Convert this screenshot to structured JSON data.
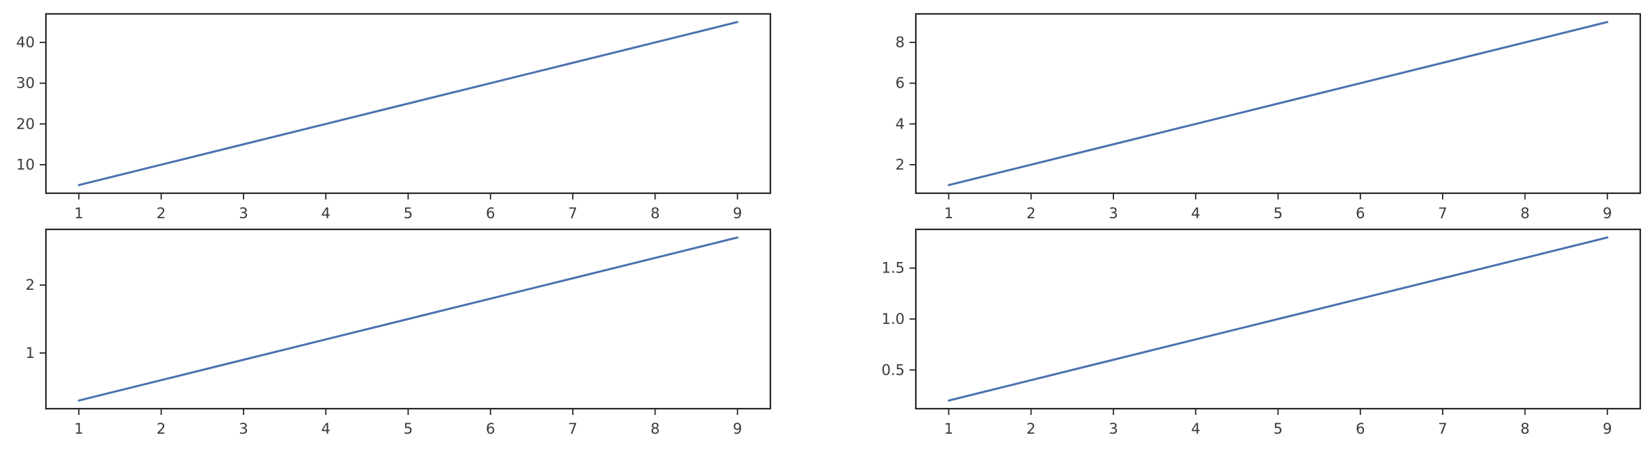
{
  "chart_data": [
    {
      "type": "line",
      "title": "",
      "xlabel": "",
      "ylabel": "",
      "xlim": [
        0.6,
        9.4
      ],
      "ylim": [
        3,
        47
      ],
      "xticks": [
        1,
        2,
        3,
        4,
        5,
        6,
        7,
        8,
        9
      ],
      "yticks": [
        10,
        20,
        30,
        40
      ],
      "ytick_labels": [
        "10",
        "20",
        "30",
        "40"
      ],
      "x": [
        1,
        2,
        3,
        4,
        5,
        6,
        7,
        8,
        9
      ],
      "series": [
        {
          "values": [
            5,
            10,
            15,
            20,
            25,
            30,
            35,
            40,
            45
          ],
          "color": "#4c72b0"
        }
      ],
      "grid": false
    },
    {
      "type": "line",
      "title": "",
      "xlabel": "",
      "ylabel": "",
      "xlim": [
        0.6,
        9.4
      ],
      "ylim": [
        0.6,
        9.4
      ],
      "xticks": [
        1,
        2,
        3,
        4,
        5,
        6,
        7,
        8,
        9
      ],
      "yticks": [
        2,
        4,
        6,
        8
      ],
      "ytick_labels": [
        "2",
        "4",
        "6",
        "8"
      ],
      "x": [
        1,
        2,
        3,
        4,
        5,
        6,
        7,
        8,
        9
      ],
      "series": [
        {
          "values": [
            1,
            2,
            3,
            4,
            5,
            6,
            7,
            8,
            9
          ],
          "color": "#4c72b0"
        }
      ],
      "grid": false
    },
    {
      "type": "line",
      "title": "",
      "xlabel": "",
      "ylabel": "",
      "xlim": [
        0.6,
        9.4
      ],
      "ylim": [
        0.18,
        2.82
      ],
      "xticks": [
        1,
        2,
        3,
        4,
        5,
        6,
        7,
        8,
        9
      ],
      "yticks": [
        1,
        2
      ],
      "ytick_labels": [
        "1",
        "2"
      ],
      "x": [
        1,
        2,
        3,
        4,
        5,
        6,
        7,
        8,
        9
      ],
      "series": [
        {
          "values": [
            0.3,
            0.6,
            0.9,
            1.2,
            1.5,
            1.8,
            2.1,
            2.4,
            2.7
          ],
          "color": "#4c72b0"
        }
      ],
      "grid": false
    },
    {
      "type": "line",
      "title": "",
      "xlabel": "",
      "ylabel": "",
      "xlim": [
        0.6,
        9.4
      ],
      "ylim": [
        0.12,
        1.88
      ],
      "xticks": [
        1,
        2,
        3,
        4,
        5,
        6,
        7,
        8,
        9
      ],
      "yticks": [
        0.5,
        1.0,
        1.5
      ],
      "ytick_labels": [
        "0.5",
        "1.0",
        "1.5"
      ],
      "x": [
        1,
        2,
        3,
        4,
        5,
        6,
        7,
        8,
        9
      ],
      "series": [
        {
          "values": [
            0.2,
            0.4,
            0.6,
            0.8,
            1.0,
            1.2,
            1.4,
            1.6,
            1.8
          ],
          "color": "#4c72b0"
        }
      ],
      "grid": false
    }
  ]
}
